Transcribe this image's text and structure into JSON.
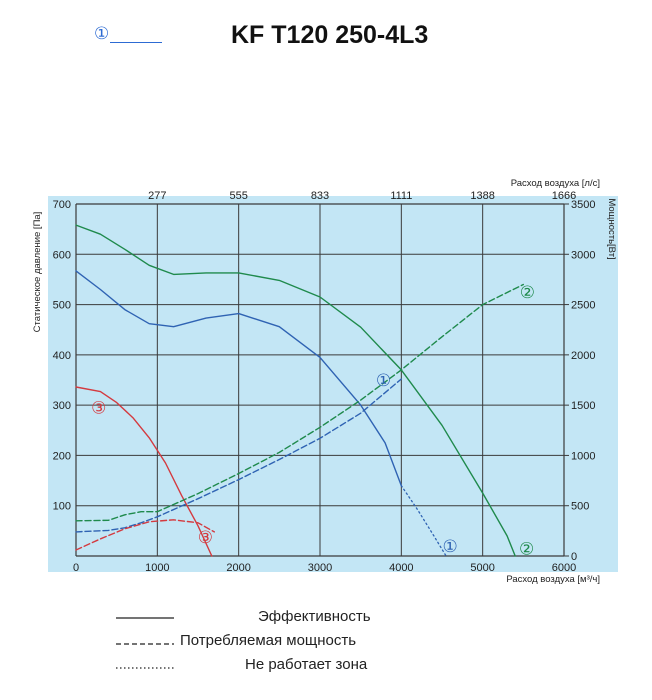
{
  "colors": {
    "plot_bg": "#c3e6f5",
    "grid": "#3a3a3a",
    "green": "#1f8a4c",
    "blue": "#2f63b3",
    "red": "#d43a3f",
    "blue_marker": "#2d6bd3"
  },
  "header": {
    "marker": "①",
    "title": "KF T120 250-4L3"
  },
  "legend": {
    "items": [
      {
        "label": "Эффективность",
        "style": "solid"
      },
      {
        "label": "Потребляемая мощность",
        "style": "dashed"
      },
      {
        "label": "Не работает зона",
        "style": "dotted"
      }
    ]
  },
  "chart_data": {
    "type": "line",
    "xlabel": "Расход воздуха [м³/ч]",
    "xlabel_top": "Расход воздуха [л/с]",
    "ylabel": "Статическое давление [Па]",
    "ylabel_right": "Мощность[Вт]",
    "xlim": [
      0,
      6000
    ],
    "ylim": [
      0,
      700
    ],
    "ylim_right": [
      0,
      3500
    ],
    "x_ticks": [
      0,
      1000,
      2000,
      3000,
      4000,
      5000,
      6000
    ],
    "x_top_ticks": [
      "277",
      "555",
      "833",
      "1111",
      "1388",
      "1666"
    ],
    "y_ticks": [
      100,
      200,
      300,
      400,
      500,
      600,
      700
    ],
    "y_right_ticks": [
      0,
      500,
      1000,
      1500,
      2000,
      2500,
      3000,
      3500
    ],
    "grid": true,
    "series": [
      {
        "label": "2",
        "kind": "pressure",
        "color": "green",
        "style": "solid",
        "x": [
          0,
          300,
          600,
          900,
          1200,
          1600,
          2000,
          2500,
          3000,
          3500,
          4000,
          4500,
          5000,
          5300,
          5400
        ],
        "y": [
          658,
          640,
          610,
          578,
          560,
          563,
          563,
          548,
          515,
          455,
          370,
          260,
          125,
          40,
          0
        ]
      },
      {
        "label": "1",
        "kind": "pressure",
        "color": "blue",
        "style": "solid",
        "x": [
          0,
          300,
          600,
          900,
          1200,
          1600,
          2000,
          2500,
          3000,
          3500,
          3800,
          4000
        ],
        "y": [
          567,
          530,
          490,
          462,
          456,
          473,
          482,
          456,
          395,
          300,
          225,
          140
        ]
      },
      {
        "label": "1",
        "kind": "pressure",
        "color": "blue",
        "style": "dotted",
        "x": [
          4000,
          4200,
          4400,
          4550
        ],
        "y": [
          140,
          92,
          40,
          0
        ]
      },
      {
        "label": "3",
        "kind": "pressure",
        "color": "red",
        "style": "solid",
        "x": [
          0,
          300,
          500,
          700,
          900,
          1100,
          1300,
          1500,
          1670
        ],
        "y": [
          336,
          327,
          305,
          275,
          235,
          185,
          120,
          60,
          0
        ]
      },
      {
        "label": "2",
        "kind": "power",
        "color": "green",
        "style": "dashed",
        "x": [
          0,
          400,
          600,
          800,
          1000,
          1500,
          2000,
          2500,
          3000,
          3500,
          4000,
          4500,
          5000,
          5500
        ],
        "y": [
          350,
          355,
          410,
          440,
          440,
          620,
          820,
          1030,
          1280,
          1550,
          1850,
          2180,
          2500,
          2700
        ]
      },
      {
        "label": "1",
        "kind": "power",
        "color": "blue",
        "style": "dashed",
        "x": [
          0,
          400,
          600,
          800,
          1000,
          1500,
          2000,
          2500,
          3000,
          3500,
          4000
        ],
        "y": [
          240,
          255,
          280,
          330,
          390,
          570,
          760,
          960,
          1170,
          1420,
          1760
        ]
      },
      {
        "label": "3",
        "kind": "power",
        "color": "red",
        "style": "dashed",
        "x": [
          0,
          300,
          600,
          900,
          1200,
          1500,
          1700
        ],
        "y": [
          60,
          170,
          270,
          340,
          360,
          330,
          240
        ]
      }
    ],
    "annotations": [
      {
        "text": "②",
        "color": "green",
        "x": 5550,
        "y": 525
      },
      {
        "text": "②",
        "color": "green",
        "x": 5540,
        "y": 15
      },
      {
        "text": "①",
        "color": "blue",
        "x": 3780,
        "y": 350
      },
      {
        "text": "①",
        "color": "blue",
        "x": 4600,
        "y": 20
      },
      {
        "text": "③",
        "color": "red",
        "x": 280,
        "y": 295
      },
      {
        "text": "③",
        "color": "red",
        "x": 1590,
        "y": 38
      }
    ]
  }
}
